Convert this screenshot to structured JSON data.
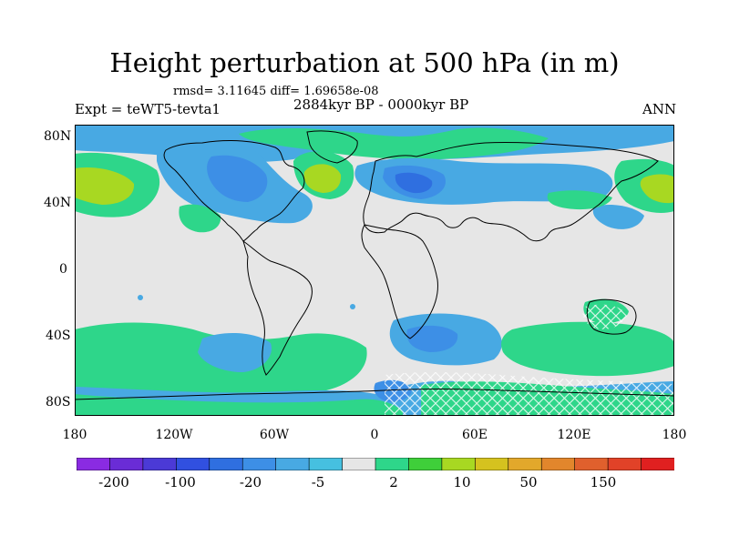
{
  "title": "Height perturbation at 500 hPa (in m)",
  "stats_line": "rmsd= 3.11645 diff= 1.69658e-08",
  "experiment": "Expt = teWT5-tevta1",
  "period": "2884kyr BP - 0000kyr BP",
  "season": "ANN",
  "lat_labels": [
    "80N",
    "40N",
    "0",
    "40S",
    "80S"
  ],
  "lon_labels": [
    "180",
    "120W",
    "60W",
    "0",
    "60E",
    "120E",
    "180"
  ],
  "colorbar": {
    "colors": [
      "#8a2be2",
      "#6a2cd6",
      "#4b3ad6",
      "#3150e0",
      "#2f6fe0",
      "#3d8fe6",
      "#48a9e3",
      "#46c0e0",
      "#e6e6e6",
      "#2ed68a",
      "#3fcf3a",
      "#a8d822",
      "#d5c21f",
      "#e2a82b",
      "#e2862c",
      "#e0602d",
      "#e14228",
      "#e02020"
    ],
    "labels": [
      "-200",
      "-100",
      "-20",
      "-5",
      "2",
      "10",
      "50",
      "150"
    ]
  },
  "colors": {
    "neutral": "#e6e6e6",
    "blue_light": "#48a9e3",
    "blue_mid": "#3d8fe6",
    "blue_dark": "#2f6fe0",
    "green": "#2ed68a",
    "green_dark": "#3fcf3a",
    "yellow_green": "#a8d822"
  }
}
